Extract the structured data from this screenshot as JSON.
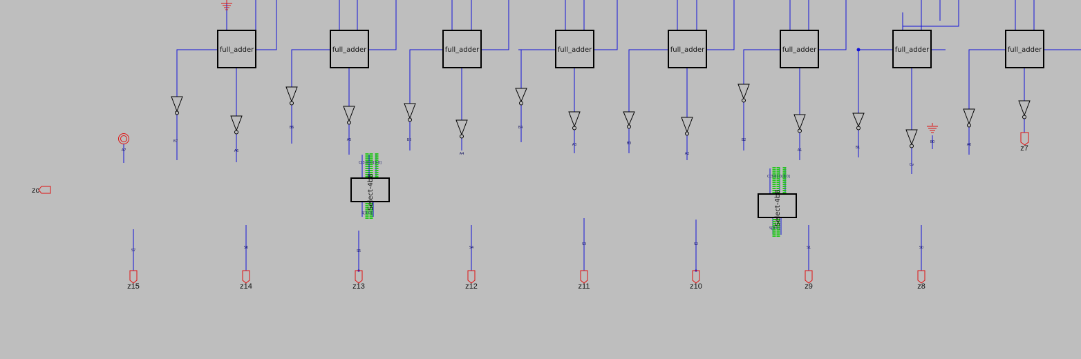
{
  "canvas": {
    "background": "#bebebe",
    "wire_color": "#1212d8",
    "port_color": "#e01010",
    "select_highlight": "#27c81e"
  },
  "adders": [
    {
      "id": "fa7",
      "label": "full_adder"
    },
    {
      "id": "fa6",
      "label": "full_adder"
    },
    {
      "id": "fa5",
      "label": "full_adder"
    },
    {
      "id": "fa4",
      "label": "full_adder"
    },
    {
      "id": "fa3",
      "label": "full_adder"
    },
    {
      "id": "fa2",
      "label": "full_adder"
    },
    {
      "id": "fa1",
      "label": "full_adder"
    },
    {
      "id": "fa0",
      "label": "full_adder"
    }
  ],
  "net_labels": {
    "a7": "A7",
    "b7": "B7",
    "a6": "A6",
    "b6": "B6",
    "a5": "A5",
    "b5": "B5",
    "a4": "A4",
    "b4": "B4",
    "a3": "A3",
    "b3": "B3",
    "a2": "A2",
    "b2": "B2",
    "a1": "A1",
    "b1": "B1",
    "a0": "A0",
    "b0": "B0",
    "cv": "Cv",
    "s7": "S7",
    "s6": "S6",
    "s5": "S5",
    "s4": "S4",
    "s3": "S3",
    "s2": "S2",
    "s1": "S1",
    "s0": "S0"
  },
  "selects": [
    {
      "label": "Select-4b8",
      "top_pins": "C[3:0] D[3:0]",
      "bottom_pin": "S[3:0]"
    },
    {
      "label": "Select-4b8",
      "top_pins": "C[3:0] D[3:0]",
      "bottom_pin": "S[3:0]"
    }
  ],
  "ports": {
    "z15": "z15",
    "z14": "z14",
    "z13": "z13",
    "z12": "z12",
    "z11": "z11",
    "z10": "z10",
    "z9": "z9",
    "z8": "z8",
    "z7": "z7",
    "zc": "zc"
  }
}
